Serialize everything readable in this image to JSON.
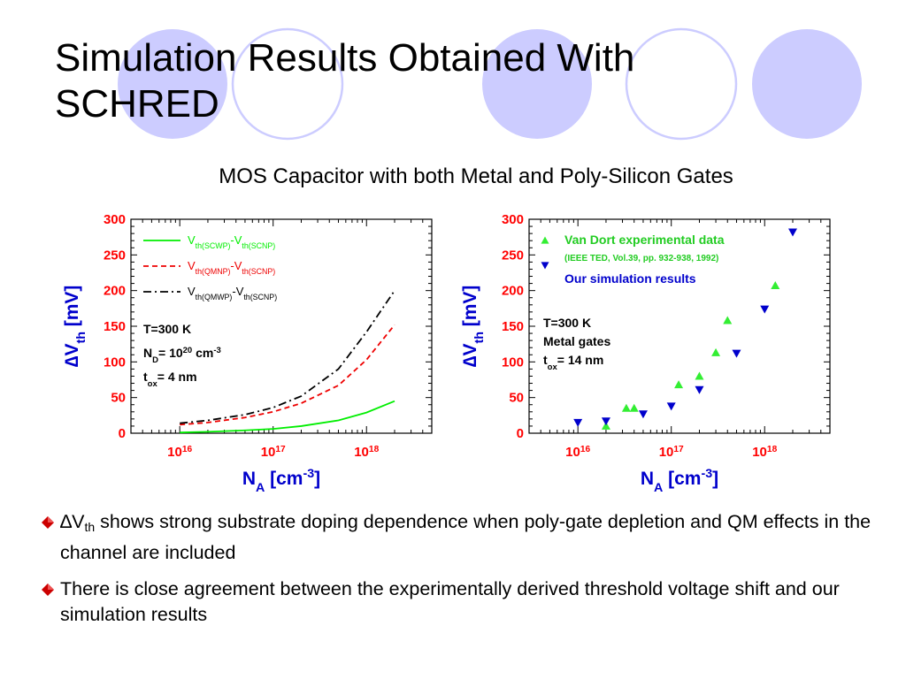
{
  "slide": {
    "title": "Simulation Results Obtained With\nSCHRED",
    "subtitle": "MOS Capacitor with both Metal and Poly-Silicon Gates",
    "bullets": [
      {
        "prefix": "∆V",
        "prefix_sub": "th",
        "text": " shows strong substrate doping dependence when poly-gate depletion and QM effects in the channel are included"
      },
      {
        "text": "There is close agreement between the experimentally derived threshold voltage shift and our simulation results"
      }
    ],
    "colors": {
      "decor_circle": "#ccccff",
      "axis_text": "#ff0000",
      "axis_label": "#0000cc",
      "bullet": "#cc0000"
    }
  },
  "chart_data": [
    {
      "type": "line",
      "ylabel": "∆V",
      "ylabel_sub": "th",
      "ylabel_unit": "[mV]",
      "xlabel": "N",
      "xlabel_sub": "A",
      "xlabel_unit": "[cm",
      "xlabel_sup": "-3",
      "xlabel_close": "]",
      "log_x": true,
      "xlim": [
        3000000000000000.0,
        5e+18
      ],
      "ylim": [
        0,
        300
      ],
      "yticks": [
        "0",
        "50",
        "100",
        "150",
        "200",
        "250",
        "300"
      ],
      "xticks": [
        {
          "value": 1e+16,
          "base": "10",
          "exp": "16"
        },
        {
          "value": 1e+17,
          "base": "10",
          "exp": "17"
        },
        {
          "value": 1e+18,
          "base": "10",
          "exp": "18"
        }
      ],
      "series": [
        {
          "name_parts": [
            "V",
            "th(SCWP)",
            "-V",
            "th(SCNP)"
          ],
          "color": "#00ee00",
          "dash": "solid",
          "x": [
            1e+16,
            2e+16,
            5e+16,
            1e+17,
            2e+17,
            5e+17,
            1e+18,
            2e+18
          ],
          "y": [
            1,
            2,
            4,
            6,
            10,
            18,
            29,
            45
          ]
        },
        {
          "name_parts": [
            "V",
            "th(QMNP)",
            "-V",
            "th(SCNP)"
          ],
          "color": "#ee0000",
          "dash": "dashed",
          "x": [
            1e+16,
            2e+16,
            5e+16,
            1e+17,
            2e+17,
            5e+17,
            1e+18,
            2e+18
          ],
          "y": [
            12,
            15,
            22,
            30,
            42,
            67,
            103,
            152
          ]
        },
        {
          "name_parts": [
            "V",
            "th(QMWP)",
            "-V",
            "th(SCNP)"
          ],
          "color": "#000000",
          "dash": "dashdot",
          "x": [
            1e+16,
            2e+16,
            5e+16,
            1e+17,
            2e+17,
            5e+17,
            1e+18,
            2e+18
          ],
          "y": [
            14,
            18,
            26,
            36,
            52,
            90,
            142,
            200
          ]
        }
      ],
      "annotations": [
        {
          "parts": [
            [
              "T=300 K",
              ""
            ]
          ]
        },
        {
          "parts": [
            [
              "N",
              ""
            ],
            [
              "D",
              "sub"
            ],
            [
              "= 10",
              ""
            ],
            [
              "20",
              "sup"
            ],
            [
              " cm",
              ""
            ],
            [
              "-3",
              "sup"
            ]
          ]
        },
        {
          "parts": [
            [
              "t",
              ""
            ],
            [
              "ox",
              "sub"
            ],
            [
              "= 4 nm",
              ""
            ]
          ]
        }
      ]
    },
    {
      "type": "scatter",
      "ylabel": "∆V",
      "ylabel_sub": "th",
      "ylabel_unit": "[mV]",
      "xlabel": "N",
      "xlabel_sub": "A",
      "xlabel_unit": "[cm",
      "xlabel_sup": "-3",
      "xlabel_close": "]",
      "log_x": true,
      "xlim": [
        3000000000000000.0,
        5e+18
      ],
      "ylim": [
        0,
        300
      ],
      "yticks": [
        "0",
        "50",
        "100",
        "150",
        "200",
        "250",
        "300"
      ],
      "xticks": [
        {
          "value": 1e+16,
          "base": "10",
          "exp": "16"
        },
        {
          "value": 1e+17,
          "base": "10",
          "exp": "17"
        },
        {
          "value": 1e+18,
          "base": "10",
          "exp": "18"
        }
      ],
      "series": [
        {
          "name": "Van Dort experimental data",
          "note": "(IEEE TED, Vol.39, pp. 932-938, 1992)",
          "color": "#33ee33",
          "marker": "triangle-up",
          "x": [
            2e+16,
            3.3e+16,
            4e+16,
            1.2e+17,
            2e+17,
            3e+17,
            4e+17,
            1.3e+18
          ],
          "y": [
            10,
            35,
            35,
            68,
            80,
            113,
            158,
            207
          ]
        },
        {
          "name": "Our simulation results",
          "color": "#0000cc",
          "marker": "triangle-down",
          "x": [
            1e+16,
            2e+16,
            5e+16,
            1e+17,
            2e+17,
            5e+17,
            1e+18,
            2e+18
          ],
          "y": [
            15,
            17,
            27,
            38,
            61,
            112,
            174,
            282
          ]
        }
      ],
      "annotations": [
        {
          "parts": [
            [
              "T=300 K",
              ""
            ]
          ]
        },
        {
          "parts": [
            [
              "Metal gates",
              ""
            ]
          ]
        },
        {
          "parts": [
            [
              "t",
              ""
            ],
            [
              "ox",
              "sub"
            ],
            [
              "= 14 nm",
              ""
            ]
          ]
        }
      ]
    }
  ]
}
